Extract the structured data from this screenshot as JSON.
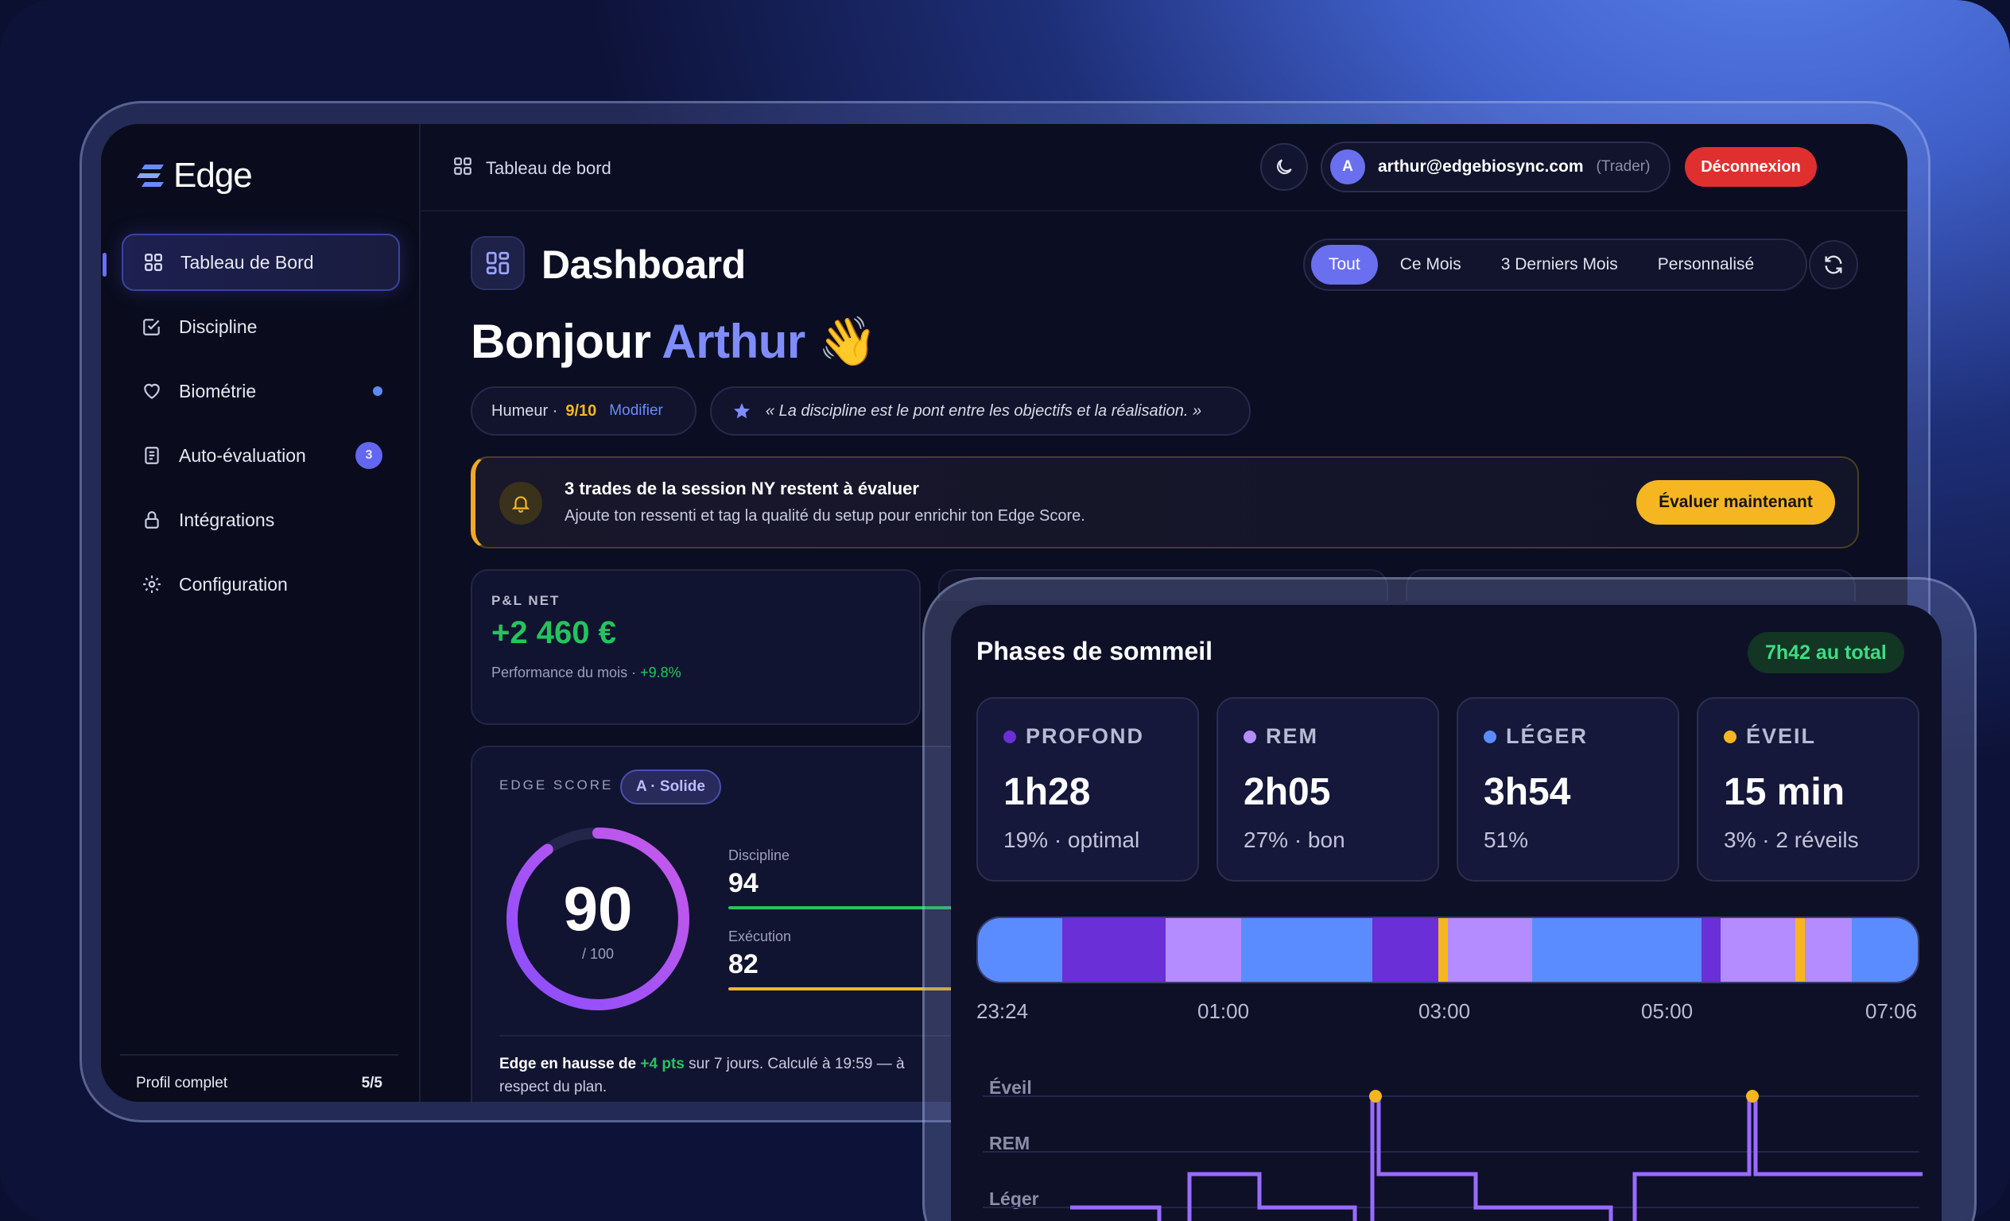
{
  "brand": {
    "name": "Edge"
  },
  "sidebar": {
    "items": [
      {
        "label": "Tableau de Bord",
        "icon": "grid-icon",
        "active": true
      },
      {
        "label": "Discipline",
        "icon": "checkbox-icon"
      },
      {
        "label": "Biométrie",
        "icon": "heart-icon",
        "dot": true
      },
      {
        "label": "Auto-évaluation",
        "icon": "clipboard-icon",
        "badge": "3"
      },
      {
        "label": "Intégrations",
        "icon": "lock-icon"
      },
      {
        "label": "Configuration",
        "icon": "gear-icon"
      }
    ],
    "profile": {
      "label": "Profil complet",
      "value": "5/5"
    }
  },
  "topbar": {
    "breadcrumb": "Tableau de bord",
    "user_email": "arthur@edgebiosync.com",
    "user_role": "(Trader)",
    "avatar_initial": "A",
    "logout_label": "Déconnexion"
  },
  "dashboard": {
    "title": "Dashboard",
    "filters": [
      "Tout",
      "Ce Mois",
      "3 Derniers Mois",
      "Personnalisé"
    ],
    "active_filter": "Tout",
    "greeting": "Bonjour",
    "name": "Arthur",
    "wave": "👋",
    "mood_label": "Humeur ·",
    "mood_value": "9/10",
    "mood_edit": "Modifier",
    "quote": "« La discipline est le pont entre les objectifs et la réalisation. »"
  },
  "alert": {
    "title": "3 trades de la session NY restent à évaluer",
    "text": "Ajoute ton ressenti et tag la qualité du setup pour enrichir ton Edge Score.",
    "button": "Évaluer maintenant"
  },
  "pnl": {
    "label": "P&L NET",
    "value": "+2 460 €",
    "sub": "Performance du mois ·",
    "change": "+9.8%"
  },
  "edge_score": {
    "label": "EDGE SCORE",
    "grade": "A · Solide",
    "score": 90,
    "score_text": "90",
    "max": "/ 100",
    "metrics": [
      {
        "label": "Discipline",
        "value": "94",
        "color": "#22c55e"
      },
      {
        "label": "Exécution",
        "value": "82",
        "color": "#f5b621"
      }
    ],
    "note_lead": "Edge en hausse de",
    "note_delta": "+4 pts",
    "note_rest": "sur 7 jours. Calculé à 19:59 — à respect du plan."
  },
  "sleep": {
    "title": "Phases de sommeil",
    "total": "7h42 au total",
    "phases": [
      {
        "name": "PROFOND",
        "value": "1h28",
        "sub": "19% · optimal",
        "color": "#6a2fd6"
      },
      {
        "name": "REM",
        "value": "2h05",
        "sub": "27% · bon",
        "color": "#b48cff"
      },
      {
        "name": "LÉGER",
        "value": "3h54",
        "sub": "51%",
        "color": "#5b8cff"
      },
      {
        "name": "ÉVEIL",
        "value": "15 min",
        "sub": "3% · 2 réveils",
        "color": "#f5b621"
      }
    ],
    "timeline": [
      {
        "stage": "light",
        "share": 0.09
      },
      {
        "stage": "deep",
        "share": 0.11
      },
      {
        "stage": "rem",
        "share": 0.08
      },
      {
        "stage": "light",
        "share": 0.14
      },
      {
        "stage": "deep",
        "share": 0.07
      },
      {
        "stage": "awake",
        "share": 0.01
      },
      {
        "stage": "rem",
        "share": 0.09
      },
      {
        "stage": "light",
        "share": 0.18
      },
      {
        "stage": "deep",
        "share": 0.02
      },
      {
        "stage": "rem",
        "share": 0.08
      },
      {
        "stage": "awake",
        "share": 0.01
      },
      {
        "stage": "rem",
        "share": 0.05
      },
      {
        "stage": "light",
        "share": 0.07
      }
    ],
    "stage_colors": {
      "light": "#5b8cff",
      "deep": "#6a2fd6",
      "rem": "#b48cff",
      "awake": "#f5b621"
    },
    "ticks": [
      "23:24",
      "01:00",
      "03:00",
      "05:00",
      "07:06"
    ],
    "hypnogram_labels": [
      "Éveil",
      "REM",
      "Léger"
    ]
  }
}
